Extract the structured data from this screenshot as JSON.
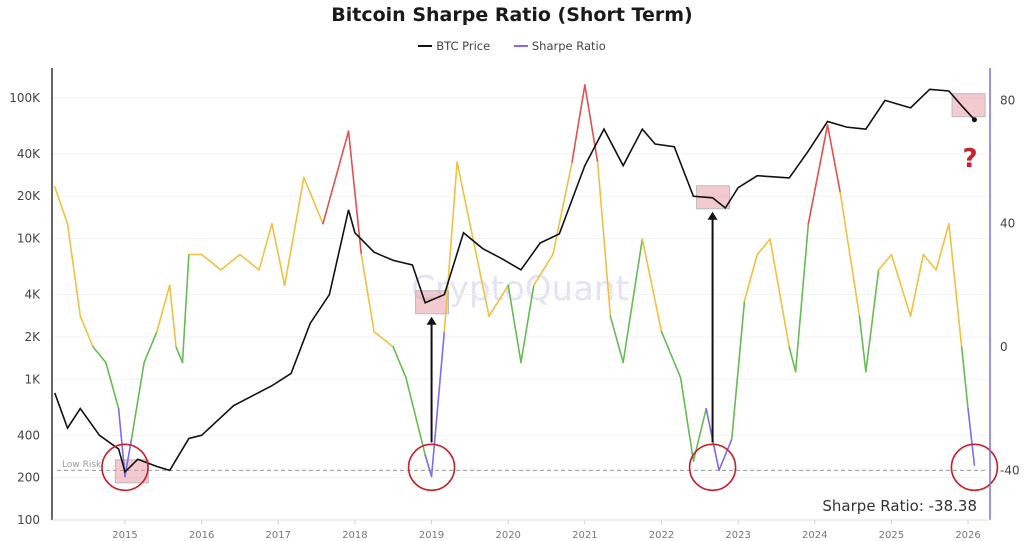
{
  "chart_data": {
    "type": "line",
    "title": "Bitcoin Sharpe Ratio (Short Term)",
    "legend": [
      {
        "name": "BTC Price",
        "color": "#111111"
      },
      {
        "name": "Sharpe Ratio",
        "color": "#7b6cf0"
      }
    ],
    "legend_placement": "top-center",
    "watermark": "CryptoQuant",
    "x_ticks": [
      "2015",
      "2016",
      "2017",
      "2018",
      "2019",
      "2020",
      "2021",
      "2022",
      "2023",
      "2024",
      "2025",
      "2026"
    ],
    "y_left": {
      "scale": "log",
      "range": [
        100,
        150000
      ],
      "ticks": [
        100,
        200,
        400,
        1000,
        2000,
        4000,
        10000,
        20000,
        40000,
        100000
      ],
      "tick_labels": [
        "100",
        "200",
        "400",
        "1K",
        "2K",
        "4K",
        "10K",
        "20K",
        "40K",
        "100K"
      ]
    },
    "y_right": {
      "scale": "linear",
      "range": [
        -50,
        86
      ],
      "ticks": [
        -40,
        0,
        40,
        80
      ],
      "tick_labels": [
        "-40",
        "0",
        "40",
        "80"
      ]
    },
    "sharpe_colors": {
      "high": "#e05050",
      "mid": "#f0c040",
      "low": "#66bb55",
      "extreme_low": "#7b6cf0"
    },
    "low_risk": {
      "label": "Low Risk",
      "value": -40
    },
    "current_readout": "Sharpe Ratio: -38.38",
    "question_mark": "?",
    "series": [
      {
        "name": "BTC Price",
        "axis": "left",
        "points": [
          [
            "2014-02",
            800
          ],
          [
            "2014-04",
            450
          ],
          [
            "2014-06",
            620
          ],
          [
            "2014-09",
            400
          ],
          [
            "2014-12",
            320
          ],
          [
            "2015-01",
            220
          ],
          [
            "2015-03",
            270
          ],
          [
            "2015-06",
            240
          ],
          [
            "2015-08",
            225
          ],
          [
            "2015-11",
            380
          ],
          [
            "2016-01",
            400
          ],
          [
            "2016-06",
            650
          ],
          [
            "2016-12",
            900
          ],
          [
            "2017-03",
            1100
          ],
          [
            "2017-06",
            2500
          ],
          [
            "2017-09",
            4000
          ],
          [
            "2017-12",
            16000
          ],
          [
            "2018-01",
            11000
          ],
          [
            "2018-04",
            8000
          ],
          [
            "2018-07",
            7000
          ],
          [
            "2018-10",
            6500
          ],
          [
            "2018-12",
            3500
          ],
          [
            "2019-03",
            4000
          ],
          [
            "2019-06",
            11000
          ],
          [
            "2019-09",
            8500
          ],
          [
            "2019-12",
            7200
          ],
          [
            "2020-03",
            6000
          ],
          [
            "2020-06",
            9300
          ],
          [
            "2020-09",
            10800
          ],
          [
            "2020-12",
            25000
          ],
          [
            "2021-01",
            33000
          ],
          [
            "2021-04",
            60000
          ],
          [
            "2021-07",
            33000
          ],
          [
            "2021-10",
            60000
          ],
          [
            "2021-12",
            47000
          ],
          [
            "2022-03",
            45000
          ],
          [
            "2022-06",
            20000
          ],
          [
            "2022-09",
            19500
          ],
          [
            "2022-11",
            16500
          ],
          [
            "2023-01",
            23000
          ],
          [
            "2023-04",
            28000
          ],
          [
            "2023-09",
            27000
          ],
          [
            "2023-12",
            42000
          ],
          [
            "2024-03",
            68000
          ],
          [
            "2024-06",
            62000
          ],
          [
            "2024-09",
            60000
          ],
          [
            "2024-12",
            96000
          ],
          [
            "2025-04",
            85000
          ],
          [
            "2025-07",
            115000
          ],
          [
            "2025-10",
            112000
          ],
          [
            "2025-12",
            88000
          ],
          [
            "2026-02",
            70000
          ]
        ]
      },
      {
        "name": "Sharpe Ratio",
        "axis": "right",
        "points": [
          [
            "2014-02",
            52
          ],
          [
            "2014-04",
            40
          ],
          [
            "2014-06",
            10
          ],
          [
            "2014-08",
            0
          ],
          [
            "2014-10",
            -5
          ],
          [
            "2014-12",
            -20
          ],
          [
            "2015-01",
            -42
          ],
          [
            "2015-02",
            -30
          ],
          [
            "2015-04",
            -5
          ],
          [
            "2015-06",
            5
          ],
          [
            "2015-08",
            20
          ],
          [
            "2015-09",
            0
          ],
          [
            "2015-10",
            -5
          ],
          [
            "2015-11",
            30
          ],
          [
            "2016-01",
            30
          ],
          [
            "2016-04",
            25
          ],
          [
            "2016-07",
            30
          ],
          [
            "2016-10",
            25
          ],
          [
            "2016-12",
            40
          ],
          [
            "2017-02",
            20
          ],
          [
            "2017-05",
            55
          ],
          [
            "2017-08",
            40
          ],
          [
            "2017-12",
            70
          ],
          [
            "2018-02",
            30
          ],
          [
            "2018-04",
            5
          ],
          [
            "2018-07",
            0
          ],
          [
            "2018-09",
            -10
          ],
          [
            "2018-12",
            -35
          ],
          [
            "2019-01",
            -42
          ],
          [
            "2019-03",
            5
          ],
          [
            "2019-05",
            60
          ],
          [
            "2019-07",
            40
          ],
          [
            "2019-10",
            10
          ],
          [
            "2020-01",
            20
          ],
          [
            "2020-03",
            -5
          ],
          [
            "2020-05",
            20
          ],
          [
            "2020-08",
            30
          ],
          [
            "2020-11",
            60
          ],
          [
            "2021-01",
            85
          ],
          [
            "2021-03",
            60
          ],
          [
            "2021-05",
            10
          ],
          [
            "2021-07",
            -5
          ],
          [
            "2021-10",
            35
          ],
          [
            "2022-01",
            5
          ],
          [
            "2022-04",
            -10
          ],
          [
            "2022-06",
            -37
          ],
          [
            "2022-08",
            -20
          ],
          [
            "2022-10",
            -40
          ],
          [
            "2022-12",
            -30
          ],
          [
            "2023-02",
            15
          ],
          [
            "2023-04",
            30
          ],
          [
            "2023-06",
            35
          ],
          [
            "2023-09",
            0
          ],
          [
            "2023-10",
            -8
          ],
          [
            "2023-12",
            40
          ],
          [
            "2024-03",
            72
          ],
          [
            "2024-05",
            50
          ],
          [
            "2024-08",
            10
          ],
          [
            "2024-09",
            -8
          ],
          [
            "2024-11",
            25
          ],
          [
            "2025-01",
            30
          ],
          [
            "2025-04",
            10
          ],
          [
            "2025-06",
            30
          ],
          [
            "2025-08",
            25
          ],
          [
            "2025-10",
            40
          ],
          [
            "2025-12",
            0
          ],
          [
            "2026-01",
            -20
          ],
          [
            "2026-02",
            -38.38
          ]
        ]
      }
    ],
    "annotations": {
      "circles": [
        "2015-01",
        "2019-01",
        "2022-09",
        "2026-02"
      ],
      "price_boxes": [
        "2015-02",
        "2019-01",
        "2022-09",
        "2026-01"
      ]
    }
  }
}
